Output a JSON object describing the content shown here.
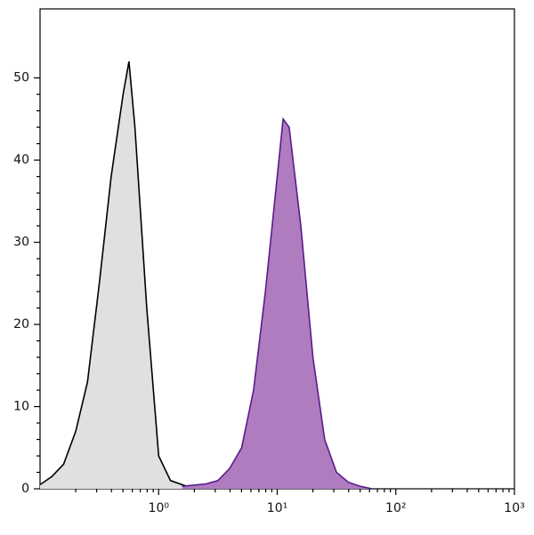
{
  "chart_data": {
    "type": "histogram-overlay",
    "log_x": true,
    "xlim": [
      0.1,
      1000
    ],
    "ylim": [
      0,
      58.4
    ],
    "xticks": [
      {
        "value": 1,
        "label": "10⁰"
      },
      {
        "value": 10,
        "label": "10¹"
      },
      {
        "value": 100,
        "label": "10²"
      },
      {
        "value": 1000,
        "label": "10³"
      }
    ],
    "yticks": [
      0,
      10,
      20,
      30,
      40,
      50
    ],
    "series": [
      {
        "color": "#000000",
        "fill": "#e0e0e0",
        "x": [
          0.1,
          0.126,
          0.158,
          0.2,
          0.251,
          0.316,
          0.398,
          0.501,
          0.562,
          0.631,
          0.794,
          1.0,
          1.26,
          1.58,
          2.0
        ],
        "values": [
          0.5,
          1.5,
          3,
          7,
          13,
          25,
          38,
          48,
          52,
          44,
          22,
          4,
          1,
          0.5,
          0
        ]
      },
      {
        "color": "#5a1a8a",
        "fill": "#b07cc0",
        "x": [
          1.58,
          2.51,
          3.16,
          3.98,
          5.01,
          6.31,
          7.94,
          10,
          11.2,
          12.6,
          15.8,
          20,
          25.1,
          31.6,
          39.8,
          50.1,
          63.1
        ],
        "values": [
          0.3,
          0.6,
          1,
          2.5,
          5,
          12,
          24,
          38,
          45,
          44,
          32,
          16,
          6,
          2,
          0.8,
          0.3,
          0
        ]
      }
    ]
  }
}
